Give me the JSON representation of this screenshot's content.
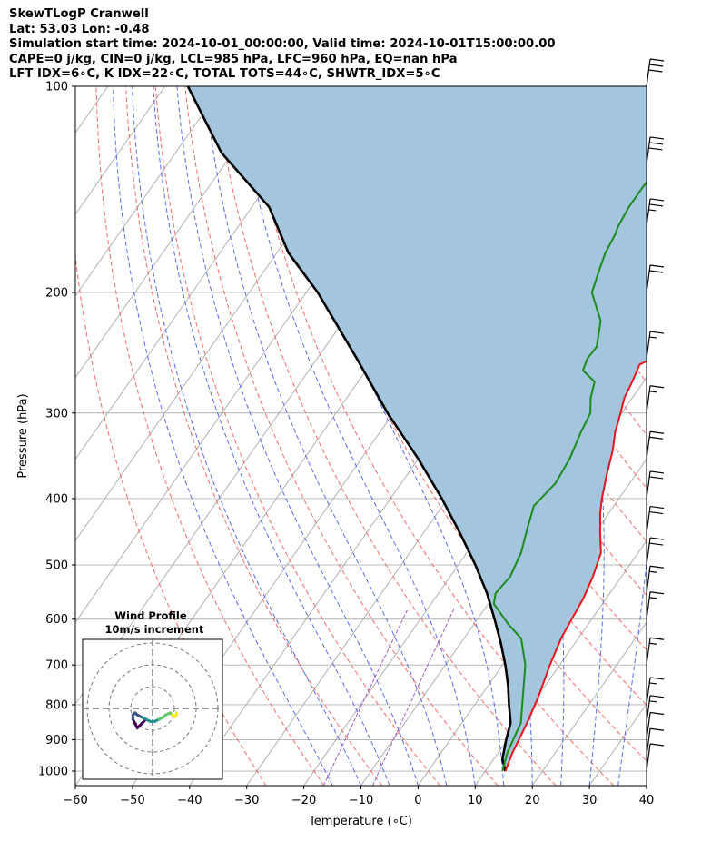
{
  "header": {
    "line1": "SkewTLogP Cranwell",
    "line2": "Lat: 53.03   Lon: -0.48",
    "line3": "Simulation start time: 2024-10-01_00:00:00, Valid time: 2024-10-01T15:00:00.00",
    "line4": "CAPE=0 j/kg, CIN=0 j/kg, LCL=985 hPa, LFC=960 hPa, EQ=nan hPa",
    "line5": "LFT IDX=6∘C, K IDX=22∘C, TOTAL TOTS=44∘C, SHWTR_IDX=5∘C"
  },
  "chart_data": {
    "type": "line",
    "subtype": "skew-T log-P diagram",
    "xlabel": "Temperature (∘C)",
    "ylabel": "Pressure (hPa)",
    "xlim": [
      -60,
      40
    ],
    "ylim": [
      1050,
      100
    ],
    "y_scale": "log",
    "x_ticks": [
      "−60",
      "−50",
      "−40",
      "−30",
      "−20",
      "−10",
      "0",
      "10",
      "20",
      "30",
      "40"
    ],
    "x_tick_values": [
      -60,
      -50,
      -40,
      -30,
      -20,
      -10,
      0,
      10,
      20,
      30,
      40
    ],
    "y_ticks": [
      1000,
      900,
      800,
      700,
      600,
      500,
      400,
      300,
      200,
      100
    ],
    "grid": true,
    "colors": {
      "temperature": "#e8141b",
      "dewpoint": "#1a8a1a",
      "parcel": "#000000",
      "cape_fill": "#a3c6de",
      "dry_adiabat": "#f26b6b",
      "moist_adiabat": "#5b6bea",
      "mixing_ratio": "#a15ec5",
      "isotherm": "#aaaaaa"
    },
    "series": [
      {
        "key": "temperature",
        "points": [
          [
            13.5,
            1000
          ],
          [
            12.5,
            940
          ],
          [
            11.4,
            850
          ],
          [
            10.2,
            780
          ],
          [
            8.3,
            700
          ],
          [
            7.0,
            640
          ],
          [
            6.5,
            600
          ],
          [
            6.0,
            560
          ],
          [
            5.0,
            520
          ],
          [
            3.5,
            480
          ],
          [
            1.0,
            450
          ],
          [
            -1.5,
            420
          ],
          [
            -3.0,
            400
          ],
          [
            -5.0,
            370
          ],
          [
            -7.0,
            340
          ],
          [
            -8.8,
            320
          ],
          [
            -10.2,
            300
          ],
          [
            -11.4,
            285
          ],
          [
            -12.0,
            270
          ],
          [
            -12.8,
            255
          ],
          [
            -11.5,
            250
          ],
          [
            -10.0,
            245
          ],
          [
            -8.3,
            240
          ],
          [
            -7.2,
            230
          ],
          [
            -6.8,
            220
          ],
          [
            -6.5,
            210
          ],
          [
            -7.0,
            200
          ],
          [
            -7.5,
            185
          ],
          [
            -8.5,
            165
          ],
          [
            -9.5,
            150
          ],
          [
            -12.0,
            135
          ],
          [
            -13.0,
            125
          ],
          [
            -14.5,
            117
          ],
          [
            -16.3,
            111
          ],
          [
            -17.3,
            105
          ],
          [
            -18.0,
            100
          ]
        ]
      },
      {
        "key": "dewpoint",
        "points": [
          [
            13.0,
            1000
          ],
          [
            11.6,
            940
          ],
          [
            10.3,
            850
          ],
          [
            7.5,
            780
          ],
          [
            4.0,
            700
          ],
          [
            0.0,
            640
          ],
          [
            -4.0,
            610
          ],
          [
            -9.0,
            570
          ],
          [
            -10.0,
            550
          ],
          [
            -9.5,
            520
          ],
          [
            -10.5,
            480
          ],
          [
            -12.5,
            440
          ],
          [
            -14.0,
            410
          ],
          [
            -13.0,
            380
          ],
          [
            -13.5,
            350
          ],
          [
            -14.8,
            320
          ],
          [
            -15.5,
            300
          ],
          [
            -17.3,
            285
          ],
          [
            -18.6,
            270
          ],
          [
            -22.0,
            260
          ],
          [
            -22.7,
            250
          ],
          [
            -22.5,
            240
          ],
          [
            -25.0,
            220
          ],
          [
            -30.0,
            200
          ],
          [
            -31.5,
            185
          ],
          [
            -32.5,
            175
          ],
          [
            -33.0,
            165
          ],
          [
            -33.5,
            160
          ],
          [
            -34.0,
            150
          ],
          [
            -34.0,
            140
          ],
          [
            -33.5,
            130
          ],
          [
            -33.0,
            125
          ],
          [
            -32.0,
            118
          ],
          [
            -30.5,
            110
          ],
          [
            -30.0,
            100
          ]
        ]
      },
      {
        "key": "parcel",
        "points": [
          [
            13.5,
            1000
          ],
          [
            11.5,
            960
          ],
          [
            9.8,
            900
          ],
          [
            8.5,
            850
          ],
          [
            6.0,
            800
          ],
          [
            3.5,
            750
          ],
          [
            0.5,
            700
          ],
          [
            -3.0,
            650
          ],
          [
            -7.0,
            600
          ],
          [
            -11.5,
            550
          ],
          [
            -17.0,
            500
          ],
          [
            -23.5,
            450
          ],
          [
            -31.0,
            400
          ],
          [
            -40.0,
            350
          ],
          [
            -51.0,
            300
          ],
          [
            -63.0,
            250
          ],
          [
            -78.0,
            200
          ],
          [
            -88.0,
            175
          ],
          [
            -97.0,
            150
          ],
          [
            -112.0,
            125
          ],
          [
            -126.0,
            100
          ]
        ]
      }
    ],
    "wind_barbs": [
      {
        "p": 100,
        "speed_kt": 30
      },
      {
        "p": 130,
        "speed_kt": 30
      },
      {
        "p": 160,
        "speed_kt": 25
      },
      {
        "p": 200,
        "speed_kt": 20
      },
      {
        "p": 250,
        "speed_kt": 15
      },
      {
        "p": 300,
        "speed_kt": 15
      },
      {
        "p": 350,
        "speed_kt": 20
      },
      {
        "p": 400,
        "speed_kt": 20
      },
      {
        "p": 450,
        "speed_kt": 20
      },
      {
        "p": 500,
        "speed_kt": 20
      },
      {
        "p": 550,
        "speed_kt": 15
      },
      {
        "p": 600,
        "speed_kt": 15
      },
      {
        "p": 700,
        "speed_kt": 15
      },
      {
        "p": 800,
        "speed_kt": 15
      },
      {
        "p": 850,
        "speed_kt": 15
      },
      {
        "p": 900,
        "speed_kt": 10
      },
      {
        "p": 950,
        "speed_kt": 10
      },
      {
        "p": 1000,
        "speed_kt": 10
      }
    ],
    "hodograph": {
      "title": "Wind Profile",
      "subtitle": "10m/s increment",
      "rings_ms": [
        10,
        20,
        30
      ],
      "points": [
        [
          -3,
          -5
        ],
        [
          -5,
          -7
        ],
        [
          -6,
          -8
        ],
        [
          -7,
          -9
        ],
        [
          -8,
          -7
        ],
        [
          -9,
          -5
        ],
        [
          -9,
          -3
        ],
        [
          -8,
          -2
        ],
        [
          -7,
          -3
        ],
        [
          -5,
          -4
        ],
        [
          -3,
          -5
        ],
        [
          -1,
          -6
        ],
        [
          1,
          -6
        ],
        [
          3,
          -5
        ],
        [
          5,
          -4
        ],
        [
          6,
          -3
        ],
        [
          8,
          -2
        ],
        [
          9,
          -3
        ],
        [
          10,
          -4
        ],
        [
          11,
          -3
        ],
        [
          11,
          -2
        ]
      ]
    }
  }
}
